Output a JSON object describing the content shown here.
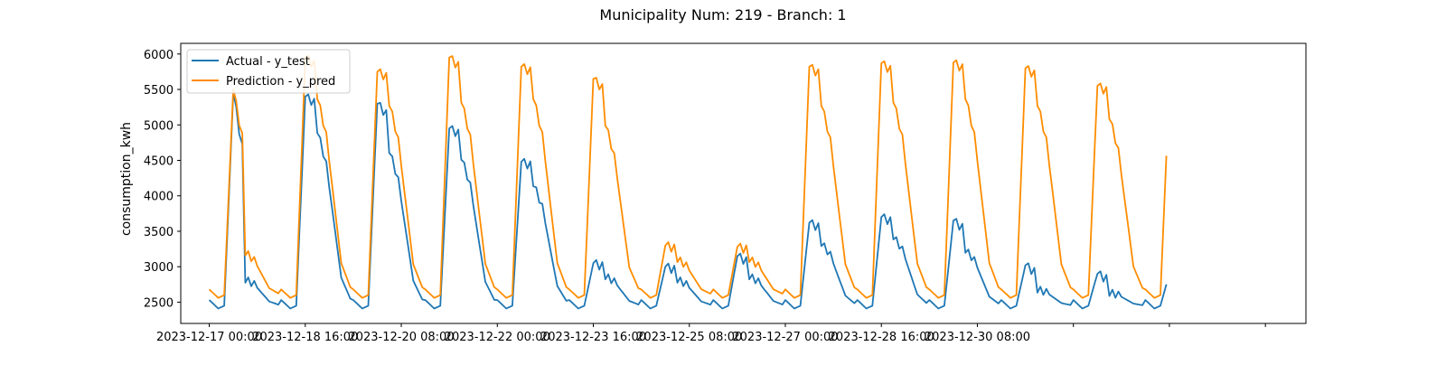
{
  "chart_data": {
    "type": "line",
    "title": "Municipality Num: 219 - Branch: 1",
    "xlabel": "",
    "ylabel": "consumption_kwh",
    "ylim": [
      2200,
      6150
    ],
    "xlim": [
      -9.5,
      365.5
    ],
    "grid": false,
    "legend_position": "top-left",
    "x_tick_positions": [
      0,
      32,
      64,
      96,
      128,
      160,
      192,
      224,
      256,
      288,
      320,
      352
    ],
    "x_tick_labels": [
      "2023-12-17 00:00",
      "2023-12-18 16:00",
      "2023-12-20 08:00",
      "2023-12-22 00:00",
      "2023-12-23 16:00",
      "2023-12-25 08:00",
      "2023-12-27 00:00",
      "2023-12-28 16:00",
      "2023-12-30 08:00",
      "",
      "",
      ""
    ],
    "y_ticks": [
      2500,
      3000,
      3500,
      4000,
      4500,
      5000,
      5500,
      6000
    ],
    "series": [
      {
        "name": "Actual - y_test",
        "color": "#1f77b4",
        "day_peaks": [
          5450,
          5400,
          5300,
          4950,
          4480,
          3050,
          3000,
          3150,
          3620,
          3700,
          3650,
          3020,
          2900
        ],
        "day_evening": [
          2850,
          5100,
          4800,
          4700,
          4300,
          2900,
          2850,
          2900,
          3400,
          3500,
          3300,
          2700,
          2650
        ]
      },
      {
        "name": "Prediction - y_pred",
        "color": "#ff8c00",
        "day_peaks": [
          5500,
          5950,
          5750,
          5950,
          5820,
          5650,
          3300,
          3280,
          5820,
          5870,
          5880,
          5800,
          5550
        ],
        "day_evening": [
          3250,
          5600,
          5500,
          5550,
          5600,
          5200,
          3150,
          3150,
          5500,
          5550,
          5600,
          5500,
          5300
        ]
      }
    ]
  }
}
